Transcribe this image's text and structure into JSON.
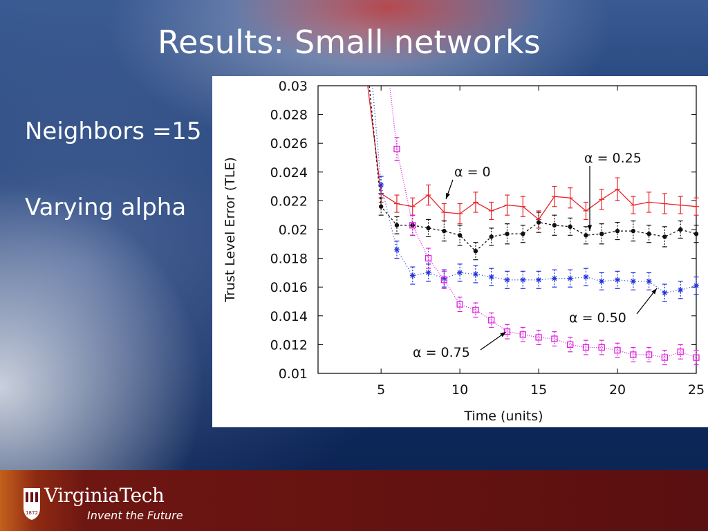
{
  "slide": {
    "title": "Results: Small networks",
    "bullets": [
      "Neighbors =15",
      "Varying alpha"
    ]
  },
  "footer": {
    "brand": "VirginiaTech",
    "tagline": "Invent the Future",
    "seal_year": "1872"
  },
  "chart_data": {
    "type": "line",
    "xlabel": "Time (units)",
    "ylabel": "Trust Level Error (TLE)",
    "xlim": [
      1,
      25
    ],
    "ylim": [
      0.01,
      0.03
    ],
    "x_ticks": [
      5,
      10,
      15,
      20,
      25
    ],
    "y_ticks": [
      0.01,
      0.012,
      0.014,
      0.016,
      0.018,
      0.02,
      0.022,
      0.024,
      0.026,
      0.028,
      0.03
    ],
    "y_tick_labels": [
      "0.01",
      "0.012",
      "0.014",
      "0.016",
      "0.018",
      "0.02",
      "0.022",
      "0.024",
      "0.026",
      "0.028",
      "0.03"
    ],
    "grid": false,
    "series": [
      {
        "name": "α = 0",
        "color": "#e8252b",
        "marker": "plus",
        "dash": "solid",
        "x": [
          5,
          6,
          7,
          8,
          9,
          10,
          11,
          12,
          13,
          14,
          15,
          16,
          17,
          18,
          19,
          20,
          21,
          22,
          23,
          24,
          25
        ],
        "y": [
          0.0225,
          0.0218,
          0.0216,
          0.0224,
          0.0212,
          0.0211,
          0.0219,
          0.0213,
          0.0217,
          0.0216,
          0.0207,
          0.0223,
          0.0222,
          0.0213,
          0.0221,
          0.0228,
          0.0217,
          0.0219,
          0.0218,
          0.0217,
          0.0216
        ],
        "err": [
          0.0006,
          0.0006,
          0.0006,
          0.0007,
          0.0006,
          0.0007,
          0.0007,
          0.0006,
          0.0007,
          0.0007,
          0.0006,
          0.0007,
          0.0007,
          0.0006,
          0.0007,
          0.0008,
          0.0006,
          0.0007,
          0.0007,
          0.0006,
          0.0006
        ],
        "head_x": [
          4.15,
          5
        ],
        "head_y": [
          0.03,
          0.0225
        ]
      },
      {
        "name": "α = 0.25",
        "color": "#111111",
        "marker": "dot",
        "dash": "3,3",
        "x": [
          5,
          6,
          7,
          8,
          9,
          10,
          11,
          12,
          13,
          14,
          15,
          16,
          17,
          18,
          19,
          20,
          21,
          22,
          23,
          24,
          25
        ],
        "y": [
          0.0216,
          0.0203,
          0.0203,
          0.0201,
          0.0199,
          0.0196,
          0.0185,
          0.0195,
          0.0197,
          0.0197,
          0.0205,
          0.0203,
          0.0202,
          0.0196,
          0.0197,
          0.0199,
          0.0199,
          0.0197,
          0.0195,
          0.02,
          0.0197
        ],
        "err": [
          0.0006,
          0.0006,
          0.0007,
          0.0006,
          0.0007,
          0.0007,
          0.0006,
          0.0006,
          0.0007,
          0.0006,
          0.0007,
          0.0007,
          0.0006,
          0.0006,
          0.0007,
          0.0006,
          0.0007,
          0.0006,
          0.0007,
          0.0006,
          0.0006
        ],
        "head_x": [
          4.25,
          5
        ],
        "head_y": [
          0.03,
          0.0216
        ]
      },
      {
        "name": "α = 0.50",
        "color": "#2233dd",
        "marker": "star",
        "dash": "1,3",
        "x": [
          5,
          6,
          7,
          8,
          9,
          10,
          11,
          12,
          13,
          14,
          15,
          16,
          17,
          18,
          19,
          20,
          21,
          22,
          23,
          24,
          25
        ],
        "y": [
          0.0231,
          0.0186,
          0.0168,
          0.017,
          0.0166,
          0.017,
          0.0169,
          0.0167,
          0.0165,
          0.0165,
          0.0165,
          0.0166,
          0.0166,
          0.0167,
          0.0164,
          0.0165,
          0.0164,
          0.0164,
          0.0156,
          0.0158,
          0.0161
        ],
        "err": [
          0.0006,
          0.0006,
          0.0006,
          0.0006,
          0.0006,
          0.0006,
          0.0006,
          0.0006,
          0.0006,
          0.0006,
          0.0006,
          0.0006,
          0.0006,
          0.0006,
          0.0006,
          0.0006,
          0.0006,
          0.0006,
          0.0006,
          0.0006,
          0.0006
        ],
        "head_x": [
          4.45,
          5
        ],
        "head_y": [
          0.03,
          0.0231
        ]
      },
      {
        "name": "α = 0.75",
        "color": "#dd22dd",
        "marker": "square",
        "dash": "1,2",
        "x": [
          6,
          7,
          8,
          9,
          10,
          11,
          12,
          13,
          14,
          15,
          16,
          17,
          18,
          19,
          20,
          21,
          22,
          23,
          24,
          25
        ],
        "y": [
          0.0256,
          0.0203,
          0.018,
          0.0165,
          0.0148,
          0.0144,
          0.0137,
          0.0129,
          0.0127,
          0.0125,
          0.0124,
          0.012,
          0.0118,
          0.0118,
          0.0116,
          0.0113,
          0.0113,
          0.0111,
          0.0115,
          0.0111
        ],
        "err": [
          0.0008,
          0.0007,
          0.0007,
          0.0006,
          0.0005,
          0.0005,
          0.0005,
          0.0005,
          0.0005,
          0.0005,
          0.0005,
          0.0005,
          0.0005,
          0.0005,
          0.0005,
          0.0005,
          0.0005,
          0.0005,
          0.0005,
          0.0005
        ],
        "head_x": [
          5.55,
          6
        ],
        "head_y": [
          0.03,
          0.0256
        ]
      }
    ],
    "annotations": [
      {
        "text": "α = 0",
        "target_series": 0
      },
      {
        "text": "α = 0.25",
        "target_series": 1
      },
      {
        "text": "α = 0.50",
        "target_series": 2
      },
      {
        "text": "α = 0.75",
        "target_series": 3
      }
    ]
  }
}
